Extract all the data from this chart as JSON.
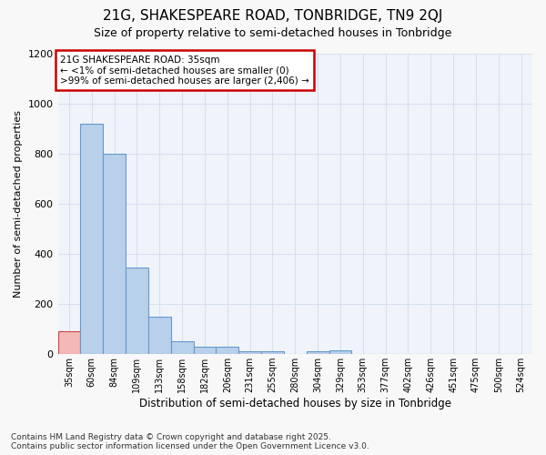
{
  "title1": "21G, SHAKESPEARE ROAD, TONBRIDGE, TN9 2QJ",
  "title2": "Size of property relative to semi-detached houses in Tonbridge",
  "xlabel": "Distribution of semi-detached houses by size in Tonbridge",
  "ylabel": "Number of semi-detached properties",
  "categories": [
    "35sqm",
    "60sqm",
    "84sqm",
    "109sqm",
    "133sqm",
    "158sqm",
    "182sqm",
    "206sqm",
    "231sqm",
    "255sqm",
    "280sqm",
    "304sqm",
    "329sqm",
    "353sqm",
    "377sqm",
    "402sqm",
    "426sqm",
    "451sqm",
    "475sqm",
    "500sqm",
    "524sqm"
  ],
  "values": [
    90,
    920,
    800,
    345,
    150,
    52,
    28,
    28,
    13,
    13,
    0,
    13,
    15,
    0,
    0,
    0,
    0,
    0,
    0,
    0,
    0
  ],
  "bar_color": "#b8d0ea",
  "bar_edge_color": "#6699cc",
  "highlight_color": "#f4b8b8",
  "highlight_edge": "#cc4444",
  "highlight_index": 0,
  "background_color": "#f8f8f8",
  "plot_bg_color": "#f0f4fa",
  "grid_color": "#d8dff0",
  "annotation_title": "21G SHAKESPEARE ROAD: 35sqm",
  "annotation_line1": "← <1% of semi-detached houses are smaller (0)",
  "annotation_line2": ">99% of semi-detached houses are larger (2,406) →",
  "annotation_box_color": "#ffffff",
  "annotation_box_edge": "#cc0000",
  "footer1": "Contains HM Land Registry data © Crown copyright and database right 2025.",
  "footer2": "Contains public sector information licensed under the Open Government Licence v3.0.",
  "ylim": [
    0,
    1200
  ],
  "yticks": [
    0,
    200,
    400,
    600,
    800,
    1000,
    1200
  ]
}
